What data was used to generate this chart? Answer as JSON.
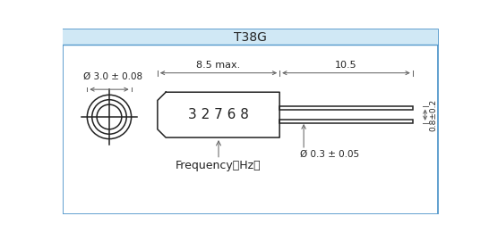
{
  "title": "T38G",
  "title_bg": "#d0e8f5",
  "bg_color": "#ffffff",
  "border_color": "#5599cc",
  "draw_color": "#222222",
  "dim_color": "#666666",
  "label_32768": "3 2 7 6 8",
  "label_freq": "Frequency（Hz）",
  "label_dia_body": "Ø 3.0 ± 0.08",
  "label_85max": "8.5 max.",
  "label_105": "10.5",
  "label_dia_pin": "Ø 0.3 ± 0.05",
  "label_pin_gap": "0.8±0.2",
  "figsize": [
    5.46,
    2.7
  ],
  "dpi": 100
}
